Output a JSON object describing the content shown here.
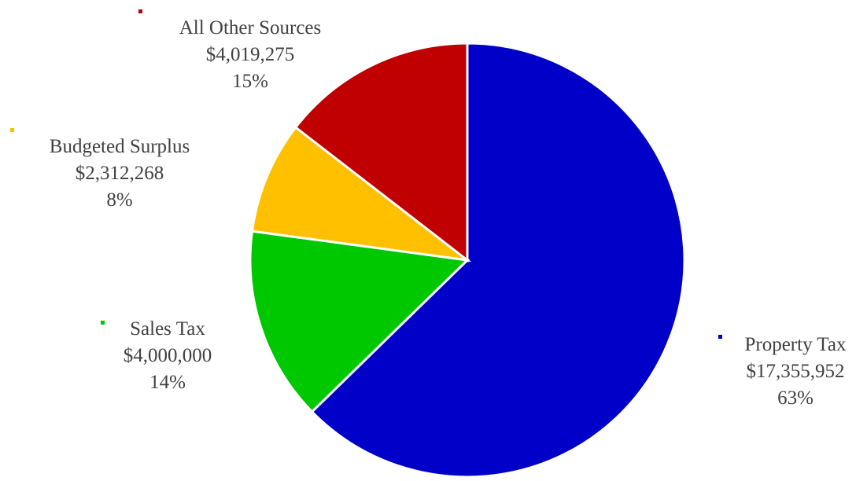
{
  "chart_data": {
    "type": "pie",
    "title": "",
    "slices": [
      {
        "label": "Property Tax",
        "value_text": "$17,355,952",
        "value": 17355952,
        "percent_text": "63%",
        "color": "#0000C8"
      },
      {
        "label": "Sales Tax",
        "value_text": "$4,000,000",
        "value": 4000000,
        "percent_text": "14%",
        "color": "#00C800"
      },
      {
        "label": "Budgeted Surplus",
        "value_text": "$2,312,268",
        "value": 2312268,
        "percent_text": "8%",
        "color": "#FFC000"
      },
      {
        "label": "All Other Sources",
        "value_text": "$4,019,275",
        "value": 4019275,
        "percent_text": "15%",
        "color": "#C00000"
      }
    ],
    "start_angle_deg": 0,
    "direction": "clockwise",
    "legend": "none",
    "data_labels": "outside"
  }
}
